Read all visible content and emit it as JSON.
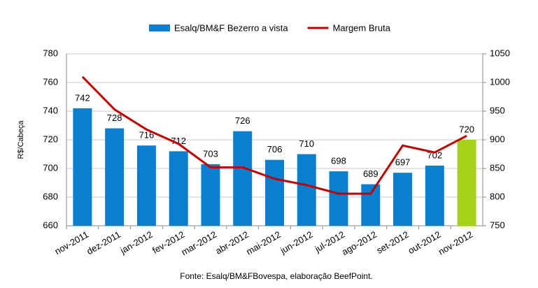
{
  "chart_data": {
    "type": "bar_line",
    "ylabel": "R$/Cabeça",
    "source": "Fonte: Esalq/BM&FBovespa, elaboração BeefPoint.",
    "categories": [
      "nov-2011",
      "dez-2011",
      "jan-2012",
      "fev-2012",
      "mar-2012",
      "abr-2012",
      "mai-2012",
      "jun-2012",
      "jul-2012",
      "ago-2012",
      "set-2012",
      "out-2012",
      "nov-2012"
    ],
    "series": [
      {
        "name": "Esalq/BM&F Bezerro a vista",
        "type": "bar",
        "color": "#0a7fce",
        "colors": [
          "#0a7fce",
          "#0a7fce",
          "#0a7fce",
          "#0a7fce",
          "#0a7fce",
          "#0a7fce",
          "#0a7fce",
          "#0a7fce",
          "#0a7fce",
          "#0a7fce",
          "#0a7fce",
          "#0a7fce",
          "#a5d118"
        ],
        "values": [
          742,
          728,
          716,
          712,
          703,
          726,
          706,
          710,
          698,
          689,
          697,
          702,
          720
        ]
      },
      {
        "name": "Margem Bruta",
        "type": "line",
        "axis": "y2",
        "color": "#c00000",
        "values": [
          1010,
          953,
          918,
          893,
          852,
          852,
          832,
          821,
          806,
          806,
          890,
          878,
          907
        ]
      }
    ],
    "ylim": [
      660,
      780
    ],
    "yticks": [
      660,
      680,
      700,
      720,
      740,
      760,
      780
    ],
    "y2lim": [
      750,
      1050
    ],
    "y2ticks": [
      750,
      800,
      850,
      900,
      950,
      1000,
      1050
    ],
    "grid": true
  }
}
